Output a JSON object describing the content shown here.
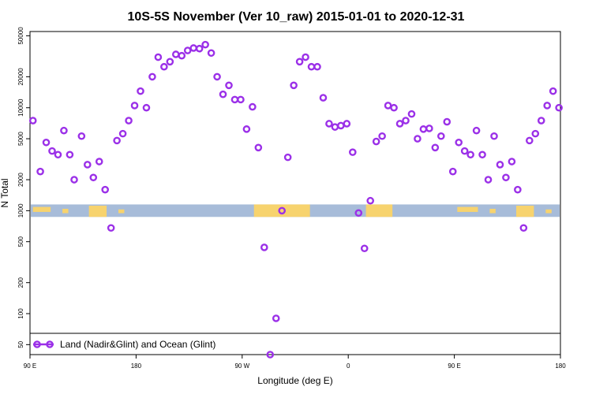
{
  "chart_data": {
    "type": "scatter",
    "title": "10S-5S November (Ver 10_raw)   2015-01-01 to 2020-12-31",
    "xlabel": "Longitude (deg E)",
    "ylabel": "N Total",
    "y_scale": "log",
    "ylim": [
      40,
      55000
    ],
    "xlim": [
      0,
      360
    ],
    "x_ticks": [
      {
        "value": 0,
        "label": "90 E"
      },
      {
        "value": 72,
        "label": "180"
      },
      {
        "value": 144,
        "label": "90 W"
      },
      {
        "value": 216,
        "label": "0"
      },
      {
        "value": 288,
        "label": "90 E"
      },
      {
        "value": 360,
        "label": "180"
      }
    ],
    "y_ticks": [
      50,
      100,
      200,
      500,
      1000,
      2000,
      5000,
      10000,
      20000,
      50000
    ],
    "legend": {
      "placement": "bottom-left",
      "label": "Land (Nadir&Glint) and Ocean (Glint)"
    },
    "marker_color": "#9b30e8",
    "map_strip": {
      "ocean_color": "#a7bcd9",
      "land_color": "#f7d36e",
      "y_range": [
        870,
        1150
      ]
    },
    "series": [
      {
        "name": "Land (Nadir&Glint) and Ocean (Glint)",
        "x": [
          2,
          7,
          11,
          15,
          19,
          23,
          27,
          30,
          35,
          39,
          43,
          47,
          51,
          55,
          59,
          63,
          67,
          71,
          75,
          79,
          83,
          87,
          91,
          95,
          99,
          103,
          107,
          111,
          115,
          119,
          123,
          127,
          131,
          135,
          139,
          143,
          147,
          151,
          155,
          159,
          163,
          167,
          171,
          175,
          179,
          183,
          187,
          191,
          195,
          199,
          203,
          207,
          211,
          215,
          219,
          223,
          227,
          231,
          235,
          239,
          243,
          247,
          251,
          255,
          259,
          263,
          267,
          271,
          275,
          279,
          283,
          287,
          291,
          295,
          299,
          303,
          307,
          311,
          315,
          319,
          323,
          327,
          331,
          335,
          339,
          343,
          347,
          351,
          355,
          359
        ],
        "y": [
          7500,
          2400,
          4600,
          3800,
          3500,
          6000,
          3500,
          2000,
          5300,
          2800,
          2100,
          3000,
          1600,
          680,
          4800,
          5600,
          7500,
          10500,
          14500,
          10000,
          20000,
          31000,
          25000,
          28000,
          33000,
          32000,
          36000,
          38000,
          37500,
          41000,
          34000,
          20000,
          13500,
          16500,
          12000,
          12000,
          6200,
          10200,
          4100,
          440,
          40,
          90,
          1000,
          3300,
          16500,
          28000,
          31000,
          25000,
          25000,
          12500,
          7000,
          6500,
          6700,
          7000,
          3700,
          950,
          430,
          1250,
          4700,
          5300,
          10500,
          10000,
          7000,
          7500,
          8700,
          5000,
          6200,
          6300,
          4100,
          5300,
          7300,
          2400,
          4600,
          3800,
          3500,
          6000,
          3500,
          2000,
          5300,
          2800,
          2100,
          3000,
          1600,
          680,
          4800,
          5600,
          7500,
          10500,
          14500,
          10000
        ]
      }
    ]
  }
}
